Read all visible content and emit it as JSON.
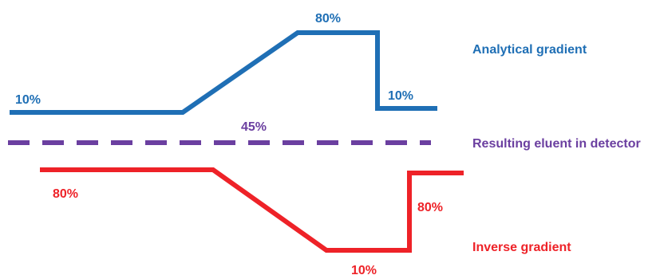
{
  "colors": {
    "analytical": "#1f6fb5",
    "eluent": "#6b3fa0",
    "inverse": "#ee2228"
  },
  "analytical": {
    "name": "Analytical gradient",
    "values": {
      "start": "10%",
      "peak": "80%",
      "end": "10%"
    }
  },
  "eluent": {
    "name": "Resulting eluent in detector",
    "value": "45%"
  },
  "inverse": {
    "name": "Inverse gradient",
    "values": {
      "start": "80%",
      "trough": "10%",
      "end": "80%"
    }
  }
}
